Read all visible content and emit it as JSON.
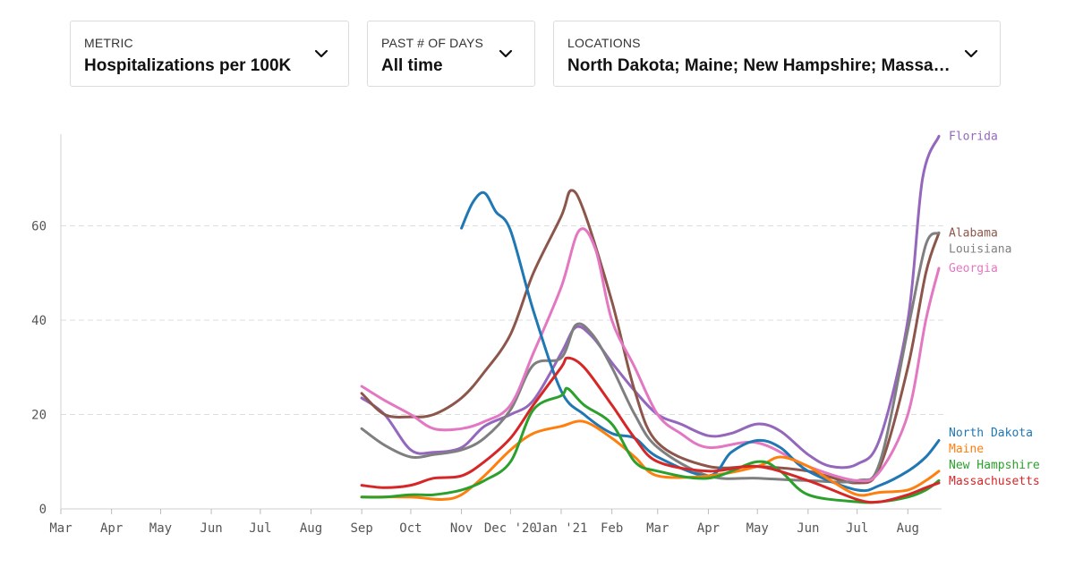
{
  "controls": {
    "metric": {
      "label": "METRIC",
      "value": "Hospitalizations per 100K"
    },
    "days": {
      "label": "PAST # OF DAYS",
      "value": "All time"
    },
    "locations": {
      "label": "LOCATIONS",
      "value": "North Dakota; Maine; New Hampshire; Massachusetts; Florida; Alabama; Louisiana; Georgia"
    }
  },
  "icons": {
    "dropdown": "chevron-down-icon"
  },
  "chart_data": {
    "type": "line",
    "title": "",
    "xlabel": "",
    "ylabel": "",
    "x_axis": {
      "type": "date",
      "range": [
        "2020-03-01",
        "2021-08-20"
      ],
      "tick_dates": [
        "2020-03-01",
        "2020-04-01",
        "2020-05-01",
        "2020-06-01",
        "2020-07-01",
        "2020-08-01",
        "2020-09-01",
        "2020-10-01",
        "2020-11-01",
        "2020-12-01",
        "2021-01-01",
        "2021-02-01",
        "2021-03-01",
        "2021-04-01",
        "2021-05-01",
        "2021-06-01",
        "2021-07-01",
        "2021-08-01"
      ],
      "tick_labels": [
        "Mar",
        "Apr",
        "May",
        "Jun",
        "Jul",
        "Aug",
        "Sep",
        "Oct",
        "Nov",
        "Dec '20",
        "Jan '21",
        "Feb",
        "Mar",
        "Apr",
        "May",
        "Jun",
        "Jul",
        "Aug"
      ]
    },
    "y_axis": {
      "range": [
        0,
        80
      ],
      "ticks": [
        0,
        20,
        40,
        60
      ]
    },
    "grid": {
      "horizontal_dashed": true,
      "vertical": false
    },
    "legend": "direct labels at right end of lines",
    "series": [
      {
        "name": "Florida",
        "color": "#9467bd",
        "points": [
          [
            "2020-09-01",
            23.5
          ],
          [
            "2020-09-15",
            20
          ],
          [
            "2020-10-01",
            12.5
          ],
          [
            "2020-10-15",
            12
          ],
          [
            "2020-11-01",
            13
          ],
          [
            "2020-11-15",
            17.5
          ],
          [
            "2020-12-01",
            20
          ],
          [
            "2020-12-15",
            23
          ],
          [
            "2021-01-01",
            33
          ],
          [
            "2021-01-10",
            38.5
          ],
          [
            "2021-01-20",
            36.5
          ],
          [
            "2021-02-01",
            31
          ],
          [
            "2021-02-15",
            25
          ],
          [
            "2021-03-01",
            20
          ],
          [
            "2021-03-15",
            18
          ],
          [
            "2021-04-01",
            15.5
          ],
          [
            "2021-04-15",
            16
          ],
          [
            "2021-05-01",
            18
          ],
          [
            "2021-05-15",
            16.5
          ],
          [
            "2021-06-01",
            11.5
          ],
          [
            "2021-06-15",
            9
          ],
          [
            "2021-07-01",
            9.5
          ],
          [
            "2021-07-15",
            15
          ],
          [
            "2021-08-01",
            40
          ],
          [
            "2021-08-10",
            70
          ],
          [
            "2021-08-20",
            79
          ]
        ]
      },
      {
        "name": "Alabama",
        "color": "#8c564b",
        "points": [
          [
            "2020-09-01",
            24.5
          ],
          [
            "2020-09-15",
            20
          ],
          [
            "2020-10-01",
            19.5
          ],
          [
            "2020-10-15",
            20
          ],
          [
            "2020-11-01",
            23.5
          ],
          [
            "2020-11-15",
            29
          ],
          [
            "2020-12-01",
            37
          ],
          [
            "2020-12-15",
            50
          ],
          [
            "2021-01-01",
            62
          ],
          [
            "2021-01-07",
            67.5
          ],
          [
            "2021-01-15",
            63
          ],
          [
            "2021-02-01",
            44
          ],
          [
            "2021-02-15",
            25
          ],
          [
            "2021-03-01",
            14
          ],
          [
            "2021-04-01",
            9
          ],
          [
            "2021-05-01",
            9
          ],
          [
            "2021-06-01",
            8
          ],
          [
            "2021-07-01",
            5.5
          ],
          [
            "2021-07-15",
            9
          ],
          [
            "2021-08-01",
            30
          ],
          [
            "2021-08-12",
            50
          ],
          [
            "2021-08-20",
            58.5
          ]
        ]
      },
      {
        "name": "Louisiana",
        "color": "#7f7f7f",
        "points": [
          [
            "2020-09-01",
            17
          ],
          [
            "2020-09-15",
            13.5
          ],
          [
            "2020-10-01",
            11
          ],
          [
            "2020-10-15",
            11.5
          ],
          [
            "2020-11-01",
            12.5
          ],
          [
            "2020-11-15",
            15
          ],
          [
            "2020-12-01",
            21
          ],
          [
            "2020-12-15",
            30.5
          ],
          [
            "2021-01-01",
            32
          ],
          [
            "2021-01-10",
            39
          ],
          [
            "2021-01-20",
            37
          ],
          [
            "2021-02-01",
            30
          ],
          [
            "2021-02-15",
            20
          ],
          [
            "2021-03-01",
            13
          ],
          [
            "2021-04-01",
            7
          ],
          [
            "2021-05-01",
            6.5
          ],
          [
            "2021-06-01",
            6
          ],
          [
            "2021-07-01",
            6
          ],
          [
            "2021-07-15",
            10
          ],
          [
            "2021-08-01",
            38
          ],
          [
            "2021-08-12",
            56
          ],
          [
            "2021-08-20",
            58.5
          ]
        ]
      },
      {
        "name": "Georgia",
        "color": "#e377c2",
        "points": [
          [
            "2020-09-01",
            26
          ],
          [
            "2020-09-15",
            23
          ],
          [
            "2020-10-01",
            20
          ],
          [
            "2020-10-15",
            17
          ],
          [
            "2020-11-01",
            17
          ],
          [
            "2020-11-15",
            18.5
          ],
          [
            "2020-12-01",
            22
          ],
          [
            "2020-12-15",
            33
          ],
          [
            "2021-01-01",
            47
          ],
          [
            "2021-01-12",
            59
          ],
          [
            "2021-01-22",
            55
          ],
          [
            "2021-02-01",
            40
          ],
          [
            "2021-02-15",
            30
          ],
          [
            "2021-03-01",
            20
          ],
          [
            "2021-03-15",
            16
          ],
          [
            "2021-04-01",
            13
          ],
          [
            "2021-05-01",
            14
          ],
          [
            "2021-06-01",
            9
          ],
          [
            "2021-07-01",
            6
          ],
          [
            "2021-07-15",
            8
          ],
          [
            "2021-08-01",
            20
          ],
          [
            "2021-08-12",
            40
          ],
          [
            "2021-08-20",
            51
          ]
        ]
      },
      {
        "name": "North Dakota",
        "color": "#1f77b4",
        "points": [
          [
            "2020-11-01",
            59.5
          ],
          [
            "2020-11-08",
            65
          ],
          [
            "2020-11-15",
            67
          ],
          [
            "2020-11-22",
            63
          ],
          [
            "2020-12-01",
            59
          ],
          [
            "2020-12-15",
            42
          ],
          [
            "2021-01-01",
            25
          ],
          [
            "2021-01-15",
            20
          ],
          [
            "2021-02-01",
            16
          ],
          [
            "2021-02-15",
            15
          ],
          [
            "2021-03-01",
            11
          ],
          [
            "2021-04-01",
            7
          ],
          [
            "2021-04-15",
            12
          ],
          [
            "2021-05-01",
            14.5
          ],
          [
            "2021-05-15",
            13
          ],
          [
            "2021-06-01",
            8
          ],
          [
            "2021-07-01",
            4
          ],
          [
            "2021-07-15",
            5
          ],
          [
            "2021-08-01",
            8
          ],
          [
            "2021-08-12",
            11
          ],
          [
            "2021-08-20",
            14.5
          ]
        ]
      },
      {
        "name": "Maine",
        "color": "#ff7f0e",
        "points": [
          [
            "2020-09-01",
            2.5
          ],
          [
            "2020-10-01",
            2.5
          ],
          [
            "2020-10-20",
            2
          ],
          [
            "2020-11-01",
            3
          ],
          [
            "2020-11-15",
            7
          ],
          [
            "2020-12-01",
            12.5
          ],
          [
            "2020-12-15",
            16
          ],
          [
            "2021-01-01",
            17.5
          ],
          [
            "2021-01-15",
            18.5
          ],
          [
            "2021-02-01",
            15
          ],
          [
            "2021-02-15",
            11
          ],
          [
            "2021-03-01",
            7
          ],
          [
            "2021-04-01",
            7
          ],
          [
            "2021-05-01",
            9
          ],
          [
            "2021-05-15",
            11
          ],
          [
            "2021-06-01",
            9
          ],
          [
            "2021-06-15",
            6
          ],
          [
            "2021-07-01",
            3
          ],
          [
            "2021-07-15",
            3.5
          ],
          [
            "2021-08-01",
            4
          ],
          [
            "2021-08-12",
            6
          ],
          [
            "2021-08-20",
            8
          ]
        ]
      },
      {
        "name": "New Hampshire",
        "color": "#2ca02c",
        "points": [
          [
            "2020-09-01",
            2.5
          ],
          [
            "2020-09-15",
            2.5
          ],
          [
            "2020-10-01",
            3
          ],
          [
            "2020-10-15",
            3
          ],
          [
            "2020-11-01",
            4
          ],
          [
            "2020-11-15",
            6
          ],
          [
            "2020-12-01",
            10
          ],
          [
            "2020-12-15",
            21
          ],
          [
            "2021-01-01",
            24
          ],
          [
            "2021-01-05",
            25.5
          ],
          [
            "2021-01-15",
            22
          ],
          [
            "2021-02-01",
            18
          ],
          [
            "2021-02-15",
            10
          ],
          [
            "2021-03-01",
            8
          ],
          [
            "2021-04-01",
            6.5
          ],
          [
            "2021-05-01",
            10
          ],
          [
            "2021-05-15",
            8
          ],
          [
            "2021-06-01",
            3
          ],
          [
            "2021-07-01",
            1.5
          ],
          [
            "2021-07-15",
            1.5
          ],
          [
            "2021-08-01",
            2.5
          ],
          [
            "2021-08-12",
            4
          ],
          [
            "2021-08-20",
            6
          ]
        ]
      },
      {
        "name": "Massachusetts",
        "color": "#d62728",
        "points": [
          [
            "2020-09-01",
            5
          ],
          [
            "2020-09-15",
            4.5
          ],
          [
            "2020-10-01",
            5
          ],
          [
            "2020-10-15",
            6.5
          ],
          [
            "2020-11-01",
            7
          ],
          [
            "2020-11-15",
            10
          ],
          [
            "2020-12-01",
            15
          ],
          [
            "2020-12-15",
            22
          ],
          [
            "2021-01-01",
            30
          ],
          [
            "2021-01-05",
            32
          ],
          [
            "2021-01-15",
            30
          ],
          [
            "2021-02-01",
            22
          ],
          [
            "2021-02-15",
            15
          ],
          [
            "2021-03-01",
            10
          ],
          [
            "2021-04-01",
            8
          ],
          [
            "2021-05-01",
            9
          ],
          [
            "2021-06-01",
            6
          ],
          [
            "2021-07-01",
            2
          ],
          [
            "2021-07-15",
            1.5
          ],
          [
            "2021-08-01",
            3
          ],
          [
            "2021-08-12",
            4.5
          ],
          [
            "2021-08-20",
            5.5
          ]
        ]
      }
    ]
  }
}
